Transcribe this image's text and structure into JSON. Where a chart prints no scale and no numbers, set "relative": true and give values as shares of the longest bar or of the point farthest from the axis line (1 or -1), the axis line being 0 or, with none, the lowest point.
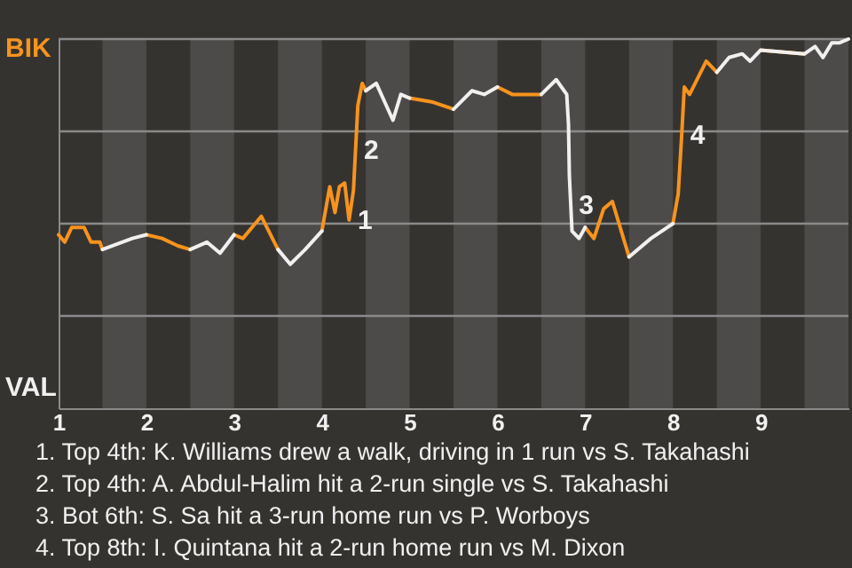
{
  "chart_data": {
    "type": "line",
    "relative": true,
    "x": [
      1,
      1.07,
      1.15,
      1.29,
      1.37,
      1.47,
      1.5,
      1.84,
      2,
      2.18,
      2.36,
      2.5,
      2.69,
      2.84,
      3,
      3.1,
      3.31,
      3.5,
      3.64,
      3.81,
      4,
      4.09,
      4.15,
      4.2,
      4.26,
      4.31,
      4.36,
      4.41,
      4.46,
      4.5,
      4.62,
      4.81,
      4.9,
      5,
      5.25,
      5.5,
      5.71,
      5.85,
      6,
      6.17,
      6.29,
      6.5,
      6.67,
      6.79,
      6.81,
      6.82,
      6.85,
      6.93,
      7,
      7.1,
      7.21,
      7.31,
      7.5,
      7.75,
      8,
      8.06,
      8.1,
      8.13,
      8.19,
      8.38,
      8.5,
      8.64,
      8.79,
      8.88,
      9,
      9.5,
      9.62,
      9.71,
      9.81,
      9.9,
      10
    ],
    "series": [
      {
        "color": "#f7931e",
        "values": [
          0.47,
          0.45,
          0.49,
          0.49,
          0.45,
          0.45,
          0.43,
          null,
          0.47,
          0.46,
          0.44,
          0.43,
          null,
          null,
          0.47,
          0.46,
          0.52,
          0.43,
          null,
          null,
          0.48,
          0.6,
          0.53,
          0.6,
          0.61,
          0.51,
          0.59,
          0.82,
          0.88,
          0.86,
          null,
          null,
          null,
          0.84,
          0.83,
          0.81,
          null,
          null,
          0.87,
          0.85,
          0.85,
          0.85,
          null,
          null,
          null,
          null,
          null,
          null,
          0.49,
          0.46,
          0.54,
          0.56,
          0.41,
          null,
          0.5,
          0.58,
          0.74,
          0.87,
          0.85,
          0.94,
          0.91,
          null,
          null,
          null,
          0.97,
          0.96,
          null,
          null,
          null,
          null,
          null
        ]
      },
      {
        "color": "#f0f0f0",
        "values": [
          null,
          null,
          null,
          null,
          null,
          null,
          0.43,
          0.46,
          0.47,
          null,
          null,
          0.43,
          0.45,
          0.42,
          0.47,
          null,
          null,
          0.43,
          0.39,
          0.43,
          0.48,
          null,
          null,
          null,
          null,
          null,
          null,
          null,
          null,
          0.86,
          0.88,
          0.78,
          0.85,
          0.84,
          null,
          0.81,
          0.86,
          0.85,
          0.87,
          null,
          null,
          0.85,
          0.89,
          0.85,
          0.77,
          0.63,
          0.48,
          0.46,
          0.49,
          null,
          null,
          null,
          0.41,
          0.46,
          0.5,
          null,
          null,
          null,
          null,
          null,
          0.91,
          0.95,
          0.96,
          0.94,
          0.97,
          0.96,
          0.98,
          0.95,
          0.99,
          0.99,
          1.0
        ]
      }
    ],
    "xlim": [
      1,
      10
    ],
    "xticks": [
      1,
      2,
      3,
      4,
      5,
      6,
      7,
      8,
      9
    ],
    "grid": "y",
    "bands": [
      {
        "axis": "x",
        "from": 1.5,
        "to": 2,
        "color": "#4d4b49"
      },
      {
        "axis": "x",
        "from": 2.5,
        "to": 3,
        "color": "#4d4b49"
      },
      {
        "axis": "x",
        "from": 3.5,
        "to": 4,
        "color": "#4d4b49"
      },
      {
        "axis": "x",
        "from": 4.5,
        "to": 5,
        "color": "#4d4b49"
      },
      {
        "axis": "x",
        "from": 5.5,
        "to": 6,
        "color": "#4d4b49"
      },
      {
        "axis": "x",
        "from": 6.5,
        "to": 7,
        "color": "#4d4b49"
      },
      {
        "axis": "x",
        "from": 7.5,
        "to": 8,
        "color": "#4d4b49"
      },
      {
        "axis": "x",
        "from": 8.5,
        "to": 9,
        "color": "#4d4b49"
      },
      {
        "axis": "x",
        "from": 9.5,
        "to": 10,
        "color": "#4d4b49"
      }
    ],
    "annotations": [
      "BIK",
      "VAL",
      {
        "text": "1",
        "x": 4.31,
        "y": 0.51
      },
      {
        "text": "2",
        "x": 4.38,
        "y": 0.7
      },
      {
        "text": "3",
        "x": 6.83,
        "y": 0.55
      },
      {
        "text": "4",
        "x": 8.1,
        "y": 0.74
      },
      "1. Top 4th: K. Williams drew a walk, driving in 1 run vs S. Takahashi",
      "2. Top 4th: A. Abdul-Halim hit a 2-run single vs S. Takahashi",
      "3. Bot 6th: S. Sa hit a 3-run home run vs P. Worboys",
      "4. Top 8th: I. Quintana hit a 2-run home run vs M. Dixon"
    ]
  }
}
